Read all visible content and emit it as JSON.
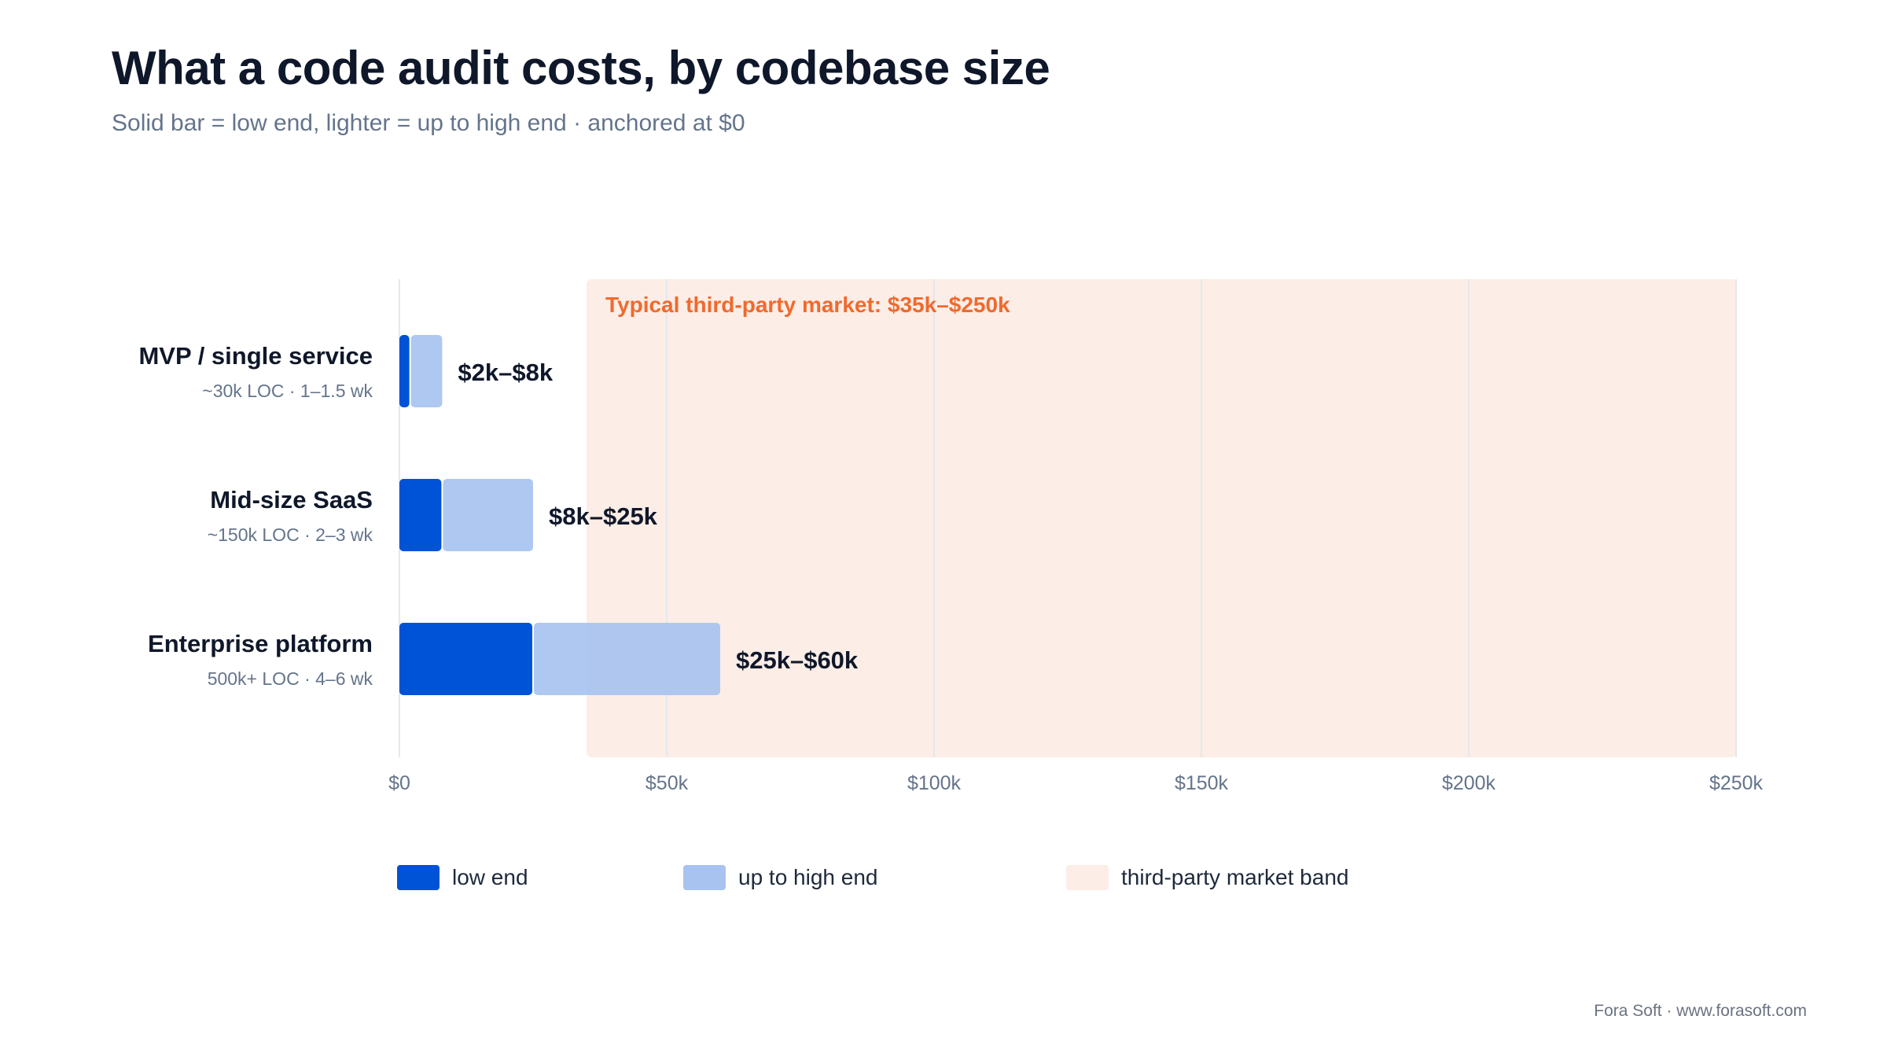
{
  "title": "What a code audit costs, by codebase size",
  "subtitle": "Solid bar = low end, lighter = up to high end · anchored at $0",
  "footer": "Fora Soft · www.forasoft.com",
  "colors": {
    "low": "#0052d6",
    "high": "#a8c3f0",
    "band": "#fcede6",
    "band_text": "#ef6a2e",
    "grid": "#e5e7eb",
    "text_dark": "#0f172a",
    "text_muted": "#64748b"
  },
  "legend": {
    "low_label": "low end",
    "high_label": "up to high end",
    "band_label": "third-party market band"
  },
  "chart_data": {
    "type": "bar",
    "orientation": "horizontal",
    "stacked": true,
    "unit": "$k",
    "categories": [
      "MVP / single service",
      "Mid-size SaaS",
      "Enterprise platform"
    ],
    "category_sublabels": [
      "~30k LOC · 1–1.5 wk",
      "~150k LOC · 2–3 wk",
      "500k+ LOC · 4–6 wk"
    ],
    "series": [
      {
        "name": "low end",
        "values": [
          2,
          8,
          25
        ]
      },
      {
        "name": "up to high end",
        "values": [
          8,
          25,
          60
        ]
      }
    ],
    "range_labels": [
      "$2k–$8k",
      "$8k–$25k",
      "$25k–$60k"
    ],
    "band": {
      "start": 35,
      "end": 250,
      "label": "Typical third-party market: $35k–$250k"
    },
    "xlim": [
      0,
      250
    ],
    "xticks": [
      0,
      50,
      100,
      150,
      200,
      250
    ],
    "xtick_labels": [
      "$0",
      "$50k",
      "$100k",
      "$150k",
      "$200k",
      "$250k"
    ],
    "grid": true,
    "legend_position": "bottom"
  }
}
